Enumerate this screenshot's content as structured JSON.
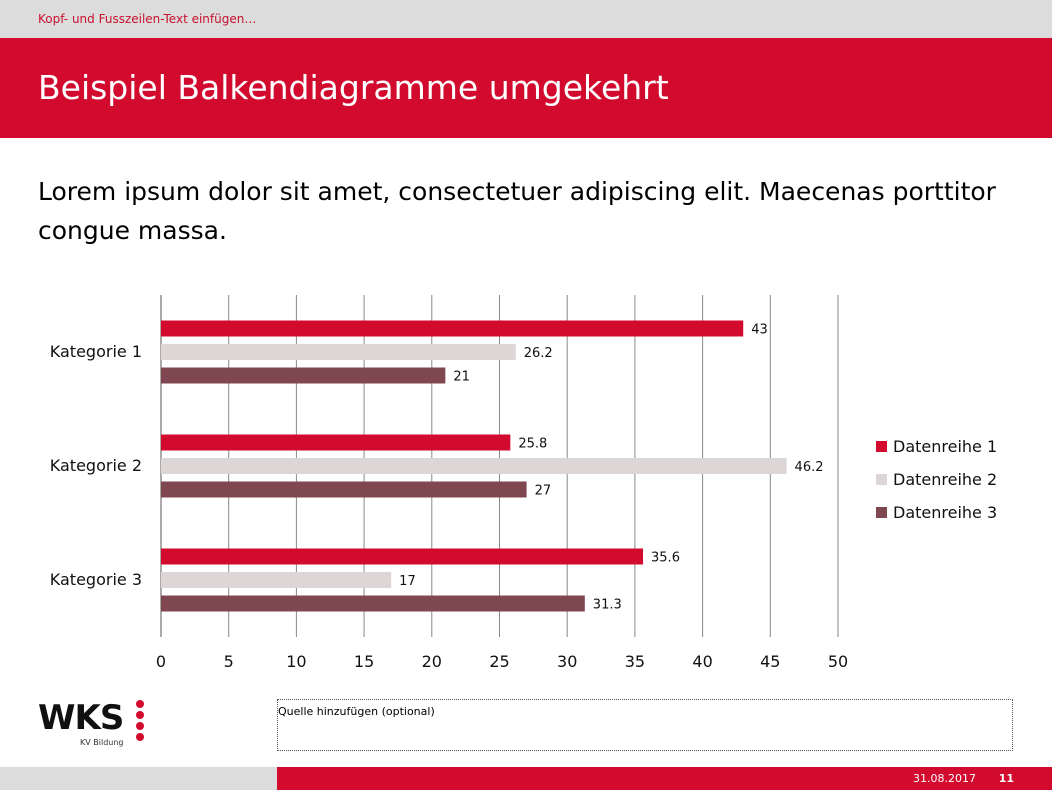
{
  "header": {
    "text": "Kopf- und Fusszeilen-Text einfügen…"
  },
  "title": "Beispiel Balkendiagramme umgekehrt",
  "body_text": "Lorem ipsum dolor sit amet, consectetuer adipiscing elit. Maecenas porttitor congue massa.",
  "logo": {
    "text": "WKS",
    "subtext": "KV Bildung"
  },
  "source_placeholder": "Quelle hinzufügen (optional)",
  "footer": {
    "date": "31.08.2017",
    "page": "11"
  },
  "colors": {
    "accent": "#d20a2e",
    "gray": "#dcdcdc"
  },
  "chart_data": {
    "type": "bar",
    "orientation": "horizontal",
    "categories": [
      "Kategorie 1",
      "Kategorie 2",
      "Kategorie 3"
    ],
    "series": [
      {
        "name": "Datenreihe 1",
        "values": [
          43,
          25.8,
          35.6
        ],
        "color": "#d20a2e"
      },
      {
        "name": "Datenreihe 2",
        "values": [
          26.2,
          46.2,
          17
        ],
        "color": "#dcd6d6"
      },
      {
        "name": "Datenreihe 3",
        "values": [
          21,
          27,
          31.3
        ],
        "color": "#7f4750"
      }
    ],
    "xlim": [
      0,
      50
    ],
    "xticks": [
      0,
      5,
      10,
      15,
      20,
      25,
      30,
      35,
      40,
      45,
      50
    ],
    "grid": true,
    "data_labels": true,
    "legend_position": "right"
  }
}
